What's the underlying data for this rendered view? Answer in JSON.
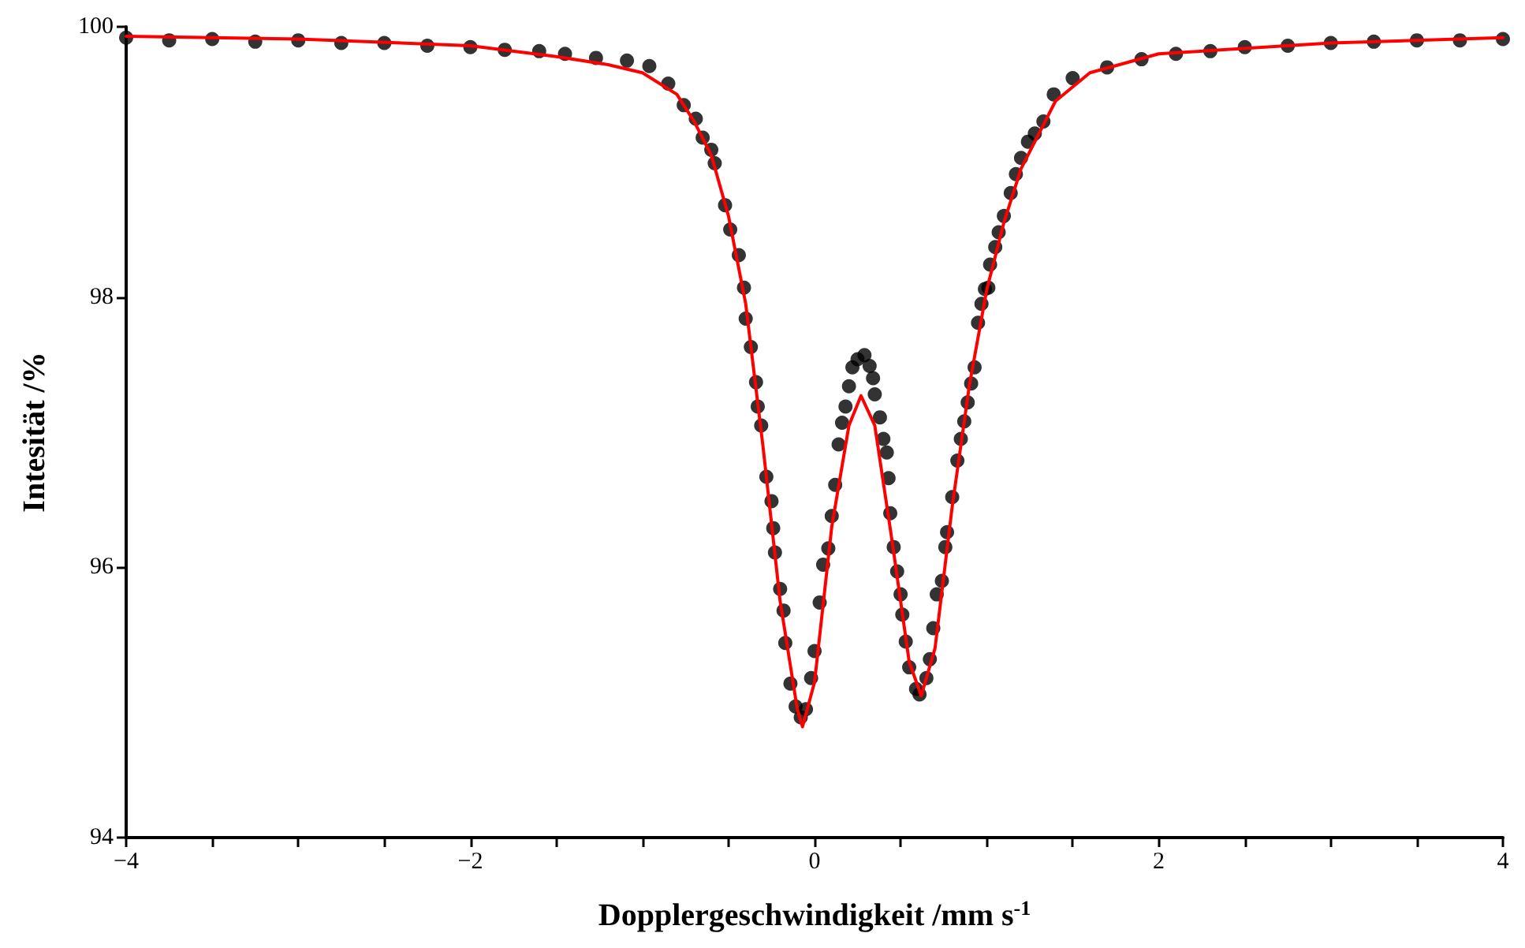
{
  "chart_data": {
    "type": "scatter",
    "xlabel": "Dopplergeschwindigkeit /mm s$^{-1}$",
    "ylabel": "Intesität /%",
    "xlim": [
      -4,
      4
    ],
    "ylim": [
      94,
      100
    ],
    "xticks": [
      {
        "value": -4,
        "label": "−4"
      },
      {
        "value": -3.5,
        "label": null
      },
      {
        "value": -3,
        "label": null
      },
      {
        "value": -2.5,
        "label": null
      },
      {
        "value": -2,
        "label": "−2"
      },
      {
        "value": -1.5,
        "label": null
      },
      {
        "value": -1,
        "label": null
      },
      {
        "value": -0.5,
        "label": null
      },
      0,
      {
        "value": 0.5,
        "label": null
      },
      {
        "value": 1,
        "label": null
      },
      {
        "value": 1.5,
        "label": null
      },
      2,
      {
        "value": 2.5,
        "label": null
      },
      {
        "value": 3,
        "label": null
      },
      {
        "value": 3.5,
        "label": null
      },
      4
    ],
    "yticks": [
      94,
      96,
      98,
      100
    ],
    "grid": false,
    "series": [
      {
        "color": "#000000",
        "marker": "circle",
        "x": [
          -4,
          -3.75,
          -3.5,
          -3.25,
          -3,
          -2.75,
          -2.5,
          -2.25,
          -2,
          -1.8,
          -1.6,
          -1.45,
          -1.27,
          -1.09,
          -0.96,
          -0.85,
          -0.76,
          -0.69,
          -0.65,
          -0.6,
          -0.58,
          -0.52,
          -0.49,
          -0.44,
          -0.41,
          -0.4,
          -0.37,
          -0.34,
          -0.33,
          -0.31,
          -0.28,
          -0.25,
          -0.24,
          -0.23,
          -0.2,
          -0.18,
          -0.17,
          -0.14,
          -0.11,
          -0.08,
          -0.05,
          -0.02,
          0,
          0.03,
          0.05,
          0.08,
          0.1,
          0.12,
          0.14,
          0.16,
          0.18,
          0.2,
          0.22,
          0.25,
          0.29,
          0.32,
          0.34,
          0.35,
          0.38,
          0.4,
          0.42,
          0.43,
          0.44,
          0.46,
          0.48,
          0.5,
          0.51,
          0.53,
          0.55,
          0.59,
          0.61,
          0.65,
          0.67,
          0.69,
          0.71,
          0.74,
          0.76,
          0.77,
          0.8,
          0.83,
          0.85,
          0.87,
          0.89,
          0.91,
          0.93,
          0.95,
          0.97,
          0.99,
          1.01,
          1.02,
          1.05,
          1.07,
          1.1,
          1.14,
          1.17,
          1.2,
          1.24,
          1.28,
          1.33,
          1.39,
          1.5,
          1.7,
          1.9,
          2.1,
          2.3,
          2.5,
          2.75,
          3,
          3.25,
          3.5,
          3.75,
          4
        ],
        "values": [
          99.92,
          99.9,
          99.91,
          99.89,
          99.9,
          99.88,
          99.88,
          99.86,
          99.85,
          99.83,
          99.82,
          99.8,
          99.77,
          99.75,
          99.71,
          99.58,
          99.42,
          99.32,
          99.18,
          99.09,
          98.99,
          98.68,
          98.5,
          98.31,
          98.07,
          97.84,
          97.63,
          97.37,
          97.19,
          97.05,
          96.67,
          96.49,
          96.29,
          96.11,
          95.84,
          95.68,
          95.44,
          95.14,
          94.97,
          94.89,
          94.95,
          95.18,
          95.38,
          95.74,
          96.02,
          96.14,
          96.38,
          96.61,
          96.91,
          97.07,
          97.19,
          97.34,
          97.48,
          97.54,
          97.57,
          97.49,
          97.4,
          97.28,
          97.11,
          96.95,
          96.85,
          96.66,
          96.4,
          96.15,
          95.97,
          95.8,
          95.65,
          95.45,
          95.26,
          95.1,
          95.06,
          95.18,
          95.32,
          95.55,
          95.8,
          95.9,
          96.15,
          96.26,
          96.52,
          96.79,
          96.95,
          97.08,
          97.22,
          97.36,
          97.48,
          97.81,
          97.95,
          98.06,
          98.07,
          98.24,
          98.37,
          98.48,
          98.6,
          98.77,
          98.91,
          99.03,
          99.15,
          99.21,
          99.3,
          99.5,
          99.62,
          99.7,
          99.76,
          99.8,
          99.82,
          99.85,
          99.86,
          99.88,
          99.89,
          99.9,
          99.9,
          99.91
        ]
      },
      {
        "type": "line",
        "color": "#ff0000",
        "marker": "none",
        "line_style": "solid",
        "x": [
          -4,
          -3,
          -2,
          -1.5,
          -1.2,
          -1,
          -0.8,
          -0.7,
          -0.6,
          -0.5,
          -0.4,
          -0.3,
          -0.2,
          -0.1,
          -0.07,
          0,
          0.1,
          0.2,
          0.27,
          0.35,
          0.45,
          0.55,
          0.62,
          0.7,
          0.8,
          0.9,
          1,
          1.1,
          1.2,
          1.4,
          1.6,
          2,
          3,
          4
        ],
        "values": [
          99.93,
          99.91,
          99.86,
          99.78,
          99.72,
          99.66,
          99.5,
          99.3,
          99.05,
          98.6,
          97.95,
          96.9,
          95.75,
          94.95,
          94.82,
          95.15,
          96.3,
          97.05,
          97.27,
          97.05,
          96.2,
          95.3,
          95.05,
          95.4,
          96.45,
          97.35,
          98.05,
          98.55,
          98.95,
          99.45,
          99.66,
          99.8,
          99.88,
          99.92
        ]
      }
    ]
  }
}
